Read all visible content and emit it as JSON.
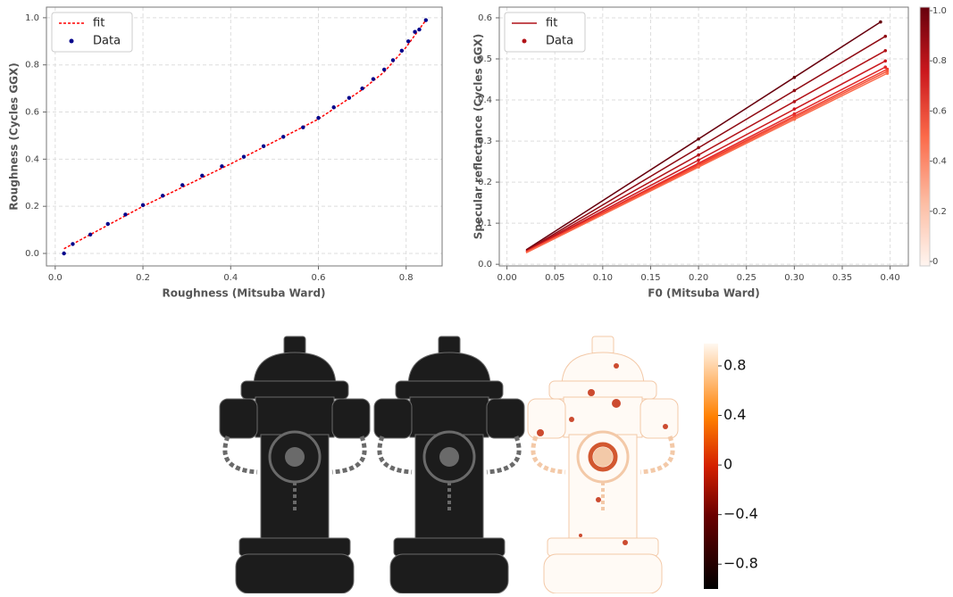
{
  "chart_data": [
    {
      "type": "scatter",
      "x_label": "Roughness (Mitsuba Ward)",
      "y_label": "Roughness (Cycles GGX)",
      "xlim": [
        -0.02,
        0.882
      ],
      "ylim": [
        -0.053,
        1.045
      ],
      "xticks": [
        {
          "value": 0.0,
          "label": "0.0"
        },
        0.2,
        0.4,
        0.6,
        0.8
      ],
      "yticks": [
        {
          "value": 0.0,
          "label": "0.0"
        },
        0.2,
        0.4,
        0.6,
        0.8,
        {
          "value": 1.0,
          "label": "1.0"
        }
      ],
      "grid": true,
      "legend": "upper left",
      "series": [
        {
          "name": "fit",
          "type": "line",
          "color": "#ff0000",
          "dash": true,
          "x": [
            0.02,
            0.1,
            0.2,
            0.3,
            0.4,
            0.5,
            0.6,
            0.7,
            0.75,
            0.8,
            0.845
          ],
          "values": [
            0.02,
            0.1,
            0.2,
            0.29,
            0.38,
            0.475,
            0.57,
            0.695,
            0.77,
            0.875,
            0.99
          ]
        },
        {
          "name": "Data",
          "type": "scatter",
          "color": "#00008b",
          "x": [
            0.02,
            0.04,
            0.08,
            0.12,
            0.16,
            0.2,
            0.245,
            0.29,
            0.335,
            0.38,
            0.43,
            0.475,
            0.52,
            0.565,
            0.6,
            0.635,
            0.67,
            0.7,
            0.725,
            0.75,
            0.77,
            0.79,
            0.805,
            0.82,
            0.83,
            0.845
          ],
          "values": [
            0.0,
            0.04,
            0.08,
            0.125,
            0.165,
            0.205,
            0.245,
            0.29,
            0.33,
            0.37,
            0.41,
            0.455,
            0.495,
            0.535,
            0.575,
            0.62,
            0.66,
            0.7,
            0.74,
            0.78,
            0.82,
            0.86,
            0.9,
            0.94,
            0.95,
            0.99
          ]
        }
      ]
    },
    {
      "type": "fits",
      "x_label": "F0 (Mitsuba Ward)",
      "y_label": "Specular reflectance (Cycles GGX)",
      "xlim": [
        -0.008,
        0.419
      ],
      "ylim": [
        -0.004,
        0.626
      ],
      "xticks": [
        {
          "value": 0.0,
          "label": "0.00"
        },
        0.05,
        {
          "value": 0.1,
          "label": "0.10"
        },
        0.15,
        {
          "value": 0.2,
          "label": "0.20"
        },
        0.25,
        {
          "value": 0.3,
          "label": "0.30"
        },
        0.35,
        {
          "value": 0.4,
          "label": "0.40"
        }
      ],
      "yticks": [
        {
          "value": 0.0,
          "label": "0.0"
        },
        0.1,
        0.2,
        0.3,
        0.4,
        0.5,
        0.6
      ],
      "grid": true,
      "legend": "upper left",
      "legend_entries": [
        {
          "name": "fit",
          "type": "line",
          "color": "#b11218"
        },
        {
          "name": "Data",
          "type": "scatter",
          "color": "#b11218"
        }
      ],
      "colorbar": {
        "clim": [
          0,
          1
        ],
        "ticks": [
          0,
          0.2,
          0.4,
          0.6,
          0.8,
          {
            "value": 1.0,
            "label": "1.0"
          }
        ]
      },
      "series": [
        {
          "param": 1.0,
          "color": "#67000d",
          "x": [
            0.02,
            0.39
          ],
          "values": [
            0.035,
            0.59
          ],
          "points_x": [
            0.2,
            0.3,
            0.39
          ],
          "points_y": [
            0.305,
            0.455,
            0.59
          ]
        },
        {
          "param": 0.875,
          "color": "#8f0a13",
          "x": [
            0.02,
            0.395
          ],
          "values": [
            0.033,
            0.555
          ],
          "points_x": [
            0.2,
            0.3,
            0.395
          ],
          "points_y": [
            0.284,
            0.423,
            0.555
          ]
        },
        {
          "param": 0.75,
          "color": "#b11218",
          "x": [
            0.02,
            0.395
          ],
          "values": [
            0.032,
            0.52
          ],
          "points_x": [
            0.2,
            0.3,
            0.395
          ],
          "points_y": [
            0.266,
            0.396,
            0.52
          ]
        },
        {
          "param": 0.625,
          "color": "#cb181d",
          "x": [
            0.02,
            0.395
          ],
          "values": [
            0.031,
            0.495
          ],
          "points_x": [
            0.2,
            0.3,
            0.395
          ],
          "points_y": [
            0.254,
            0.378,
            0.495
          ]
        },
        {
          "param": 0.5,
          "color": "#e0292a",
          "x": [
            0.02,
            0.395
          ],
          "values": [
            0.03,
            0.48
          ],
          "points_x": [
            0.2,
            0.3,
            0.395
          ],
          "points_y": [
            0.246,
            0.366,
            0.48
          ]
        },
        {
          "param": 0.375,
          "color": "#ef3b2c",
          "x": [
            0.02,
            0.397
          ],
          "values": [
            0.03,
            0.475
          ],
          "points_x": [
            0.2,
            0.3,
            0.397
          ],
          "points_y": [
            0.242,
            0.36,
            0.475
          ]
        },
        {
          "param": 0.25,
          "color": "#f5553c",
          "x": [
            0.02,
            0.397
          ],
          "values": [
            0.029,
            0.47
          ],
          "points_x": [
            0.2,
            0.3,
            0.397
          ],
          "points_y": [
            0.239,
            0.356,
            0.47
          ]
        },
        {
          "param": 0.125,
          "color": "#fb6a4a",
          "x": [
            0.02,
            0.397
          ],
          "values": [
            0.028,
            0.465
          ],
          "points_x": [
            0.2,
            0.3,
            0.397
          ],
          "points_y": [
            0.237,
            0.353,
            0.465
          ]
        }
      ]
    }
  ],
  "difference_colorbar": {
    "lim": [
      -1,
      0.98
    ],
    "ticks": [
      0.8,
      0.4,
      0,
      {
        "value": -0.4,
        "label": "−0.4"
      },
      {
        "value": -0.8,
        "label": "−0.8"
      }
    ]
  }
}
